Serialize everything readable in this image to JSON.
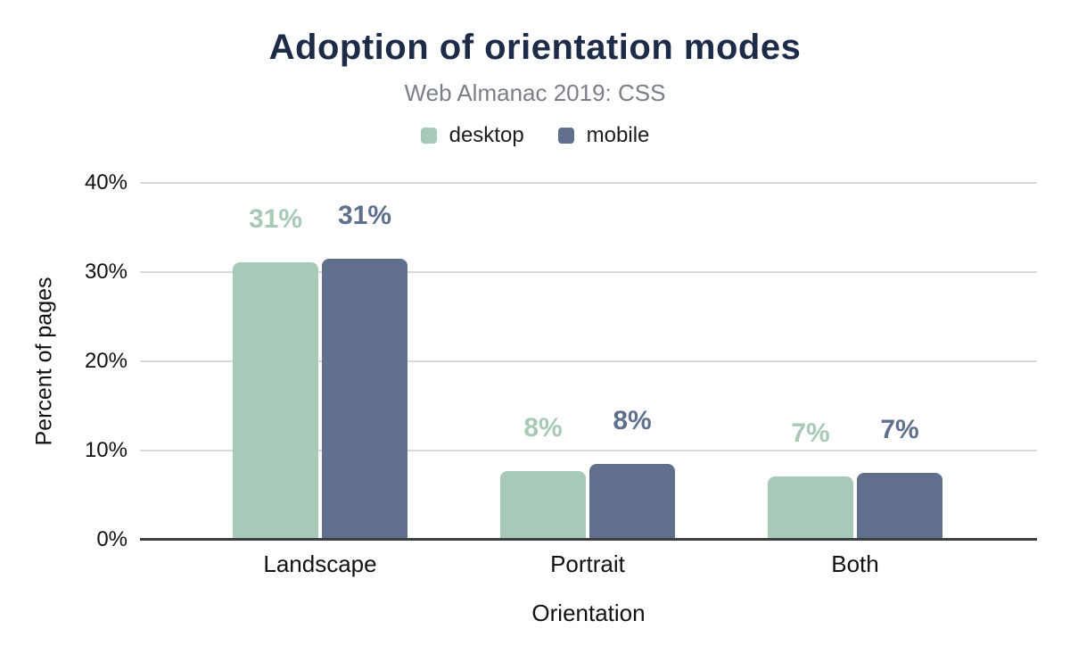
{
  "title": "Adoption of orientation modes",
  "subtitle": "Web Almanac 2019: CSS",
  "chart_data": {
    "type": "bar",
    "categories": [
      "Landscape",
      "Portrait",
      "Both"
    ],
    "series": [
      {
        "name": "desktop",
        "color": "#a9c9b8",
        "values": [
          31,
          7.6,
          7
        ],
        "labels": [
          "31%",
          "8%",
          "7%"
        ]
      },
      {
        "name": "mobile",
        "color": "#60708c",
        "values": [
          31.4,
          8.4,
          7.4
        ],
        "labels": [
          "31%",
          "8%",
          "7%"
        ]
      }
    ],
    "xlabel": "Orientation",
    "ylabel": "Percent of pages",
    "ylim": [
      0,
      40
    ],
    "ytick_step": 10,
    "yticks": [
      "0%",
      "10%",
      "20%",
      "30%",
      "40%"
    ],
    "grid": true,
    "legend_position": "top"
  },
  "colors": {
    "title": "#1e2b47",
    "subtitle": "#7a7e85",
    "gridline": "#d9d9d9",
    "axis_line": "#3c4043",
    "tick_text": "#111111",
    "background": "#ffffff"
  }
}
